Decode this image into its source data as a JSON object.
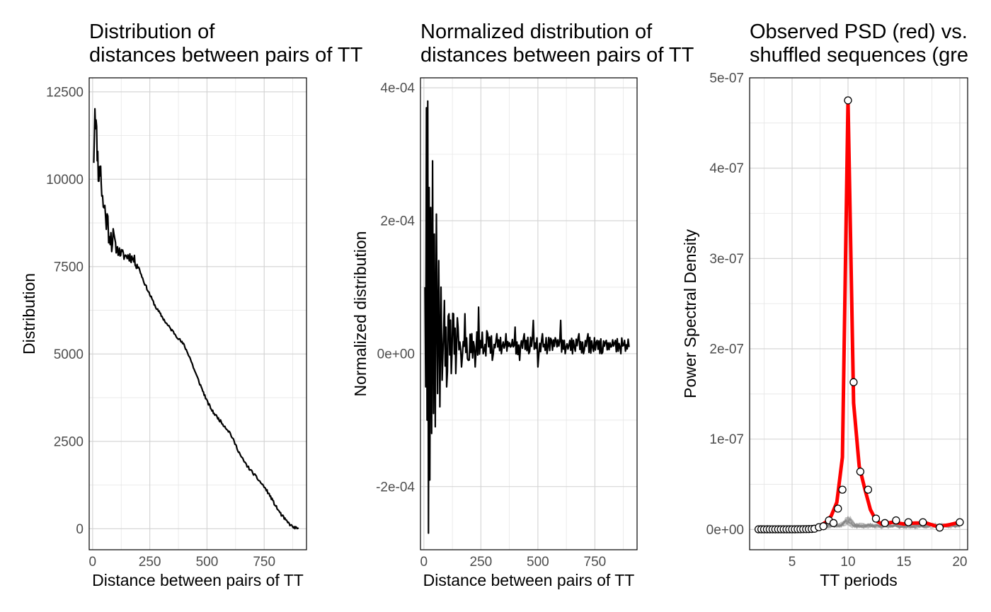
{
  "chart_data": [
    {
      "type": "line",
      "title_line1": "Distribution of",
      "title_line2": "distances between pairs of TT",
      "xlabel": "Distance between pairs of TT",
      "ylabel": "Distribution",
      "xlim": [
        -15,
        935
      ],
      "ylim": [
        -600,
        12900
      ],
      "x_ticks": [
        0,
        250,
        500,
        750
      ],
      "x_tick_labels": [
        "0",
        "250",
        "500",
        "750"
      ],
      "y_ticks": [
        0,
        2500,
        5000,
        7500,
        10000,
        12500
      ],
      "y_tick_labels": [
        "0",
        "2500",
        "5000",
        "7500",
        "10000",
        "12500"
      ],
      "grid": true,
      "line_color": "#000000",
      "series": [
        {
          "x": [
            5,
            10,
            15,
            20,
            25,
            30,
            35,
            40,
            50,
            60,
            70,
            80,
            90,
            100,
            120,
            140,
            160,
            180,
            200,
            225,
            250,
            275,
            300,
            325,
            350,
            375,
            400,
            425,
            450,
            475,
            500,
            525,
            550,
            575,
            600,
            625,
            650,
            675,
            700,
            725,
            750,
            775,
            800,
            825,
            850,
            875,
            900
          ],
          "values": [
            10700,
            12150,
            11500,
            10900,
            10300,
            10100,
            10500,
            9500,
            9200,
            8900,
            8600,
            8400,
            8200,
            8050,
            7900,
            7800,
            7800,
            7700,
            7500,
            7050,
            6700,
            6350,
            6100,
            5850,
            5650,
            5450,
            5250,
            4900,
            4450,
            4050,
            3650,
            3350,
            3150,
            2950,
            2750,
            2400,
            2050,
            1800,
            1600,
            1400,
            1200,
            950,
            650,
            400,
            200,
            50,
            0
          ]
        }
      ]
    },
    {
      "type": "line",
      "title_line1": "Normalized distribution of",
      "title_line2": "distances between pairs of TT",
      "xlabel": "Distance between pairs of TT",
      "ylabel": "Normalized distribution",
      "xlim": [
        -15,
        935
      ],
      "ylim": [
        -0.000295,
        0.000415
      ],
      "x_ticks": [
        0,
        250,
        500,
        750
      ],
      "x_tick_labels": [
        "0",
        "250",
        "500",
        "750"
      ],
      "y_ticks": [
        -0.0002,
        0,
        0.0002,
        0.0004
      ],
      "y_tick_labels": [
        "-2e-04",
        "0e+00",
        "2e-04",
        "4e-04"
      ],
      "grid": true,
      "line_color": "#000000",
      "series": [
        {
          "x": [
            5,
            8,
            11,
            14,
            17,
            20,
            23,
            26,
            30,
            34,
            38,
            42,
            46,
            50,
            55,
            60,
            65,
            70,
            75,
            80,
            90,
            100,
            110,
            120,
            130,
            140,
            150,
            165,
            180,
            195,
            210,
            225,
            240,
            260,
            280,
            300,
            320,
            340,
            360,
            380,
            400,
            420,
            440,
            460,
            480,
            500,
            520,
            540,
            560,
            580,
            600,
            620,
            640,
            660,
            680,
            700,
            720,
            740,
            760,
            780,
            800,
            820,
            840,
            860,
            880,
            900
          ],
          "values": [
            0.0001,
            -5e-05,
            0.00037,
            -0.0001,
            0.00038,
            -0.00027,
            0.00025,
            -0.00019,
            0.00022,
            -0.00012,
            0.00029,
            -9e-05,
            0.00018,
            -0.00011,
            0.00021,
            -6e-05,
            0.00014,
            -8e-05,
            0.0001,
            -4e-05,
            8e-05,
            -5e-05,
            6e-05,
            -3e-05,
            6e-05,
            -3e-05,
            4e-05,
            -2e-05,
            6e-05,
            -1e-05,
            3e-05,
            -2e-05,
            7e-05,
            0.0,
            3e-05,
            -1e-05,
            3e-05,
            0.0,
            3e-05,
            1e-05,
            4e-05,
            -1e-05,
            3e-05,
            0.0,
            5e-05,
            -2e-05,
            3e-05,
            0.0,
            2e-05,
            2e-05,
            5e-05,
            0.0,
            2e-05,
            1e-05,
            3e-05,
            0.0,
            3e-05,
            1e-05,
            2e-05,
            0.0,
            2e-05,
            1e-05,
            2e-05,
            1e-05,
            2e-05,
            1e-05
          ]
        }
      ]
    },
    {
      "type": "line",
      "title_line1": "Observed PSD (red) vs.",
      "title_line2": "shuffled sequences (gre",
      "xlabel": "TT periods",
      "ylabel": "Power Spectral Density",
      "xlim": [
        1.2,
        20.7
      ],
      "ylim": [
        -2.25e-08,
        5e-07
      ],
      "x_ticks": [
        5,
        10,
        15,
        20
      ],
      "x_tick_labels": [
        "5",
        "10",
        "15",
        "20"
      ],
      "y_ticks": [
        0,
        1e-07,
        2e-07,
        3e-07,
        4e-07,
        5e-07
      ],
      "y_tick_labels": [
        "0e+00",
        "1e-07",
        "2e-07",
        "3e-07",
        "4e-07",
        "5e-07"
      ],
      "grid": true,
      "observed_color": "#ff0000",
      "shuffled_color": "#808080",
      "series": [
        {
          "x": [
            2.0,
            2.5,
            3.0,
            3.5,
            4.0,
            4.5,
            5.0,
            5.5,
            6.0,
            6.5,
            7.0,
            7.5,
            8.0,
            8.5,
            9.0,
            9.5,
            10.0,
            10.5,
            11.0,
            11.5,
            12.0,
            12.5,
            13.0,
            14.0,
            15.0,
            16.0,
            17.0,
            18.0,
            19.0,
            20.0
          ],
          "values": [
            2e-10,
            2e-10,
            3e-10,
            3e-10,
            4e-10,
            4e-10,
            5e-10,
            7e-10,
            1e-09,
            1.5e-09,
            2.5e-09,
            4e-09,
            8e-09,
            1.5e-08,
            3e-08,
            8e-08,
            4.75e-07,
            1.4e-07,
            7e-08,
            4.5e-08,
            2.2e-08,
            1e-08,
            6e-09,
            8e-09,
            6e-09,
            7e-09,
            7e-09,
            3e-09,
            5e-09,
            8e-09
          ]
        }
      ],
      "points": {
        "x": [
          2.0,
          2.25,
          2.5,
          2.75,
          3.0,
          3.25,
          3.5,
          3.75,
          4.0,
          4.25,
          4.5,
          4.75,
          5.0,
          5.25,
          5.5,
          5.75,
          6.0,
          6.25,
          6.5,
          6.75,
          7.0,
          7.4,
          7.8,
          8.3,
          8.7,
          9.1,
          9.5,
          10.0,
          10.5,
          11.1,
          11.8,
          12.5,
          13.3,
          14.3,
          15.4,
          16.7,
          18.2,
          20.0
        ],
        "values": [
          1e-10,
          1e-10,
          1e-10,
          1e-10,
          1e-10,
          1e-10,
          1e-10,
          1e-10,
          1e-10,
          1e-10,
          1e-10,
          1e-10,
          1e-10,
          1e-10,
          2e-10,
          2e-10,
          3e-10,
          3e-10,
          4e-10,
          5e-10,
          8e-10,
          2.5e-09,
          3.5e-09,
          1e-08,
          7e-09,
          2.3e-08,
          4.4e-08,
          4.75e-07,
          1.63e-07,
          6.4e-08,
          4.4e-08,
          1.2e-08,
          7e-09,
          1e-08,
          8e-09,
          8e-09,
          2e-09,
          8e-09
        ]
      }
    }
  ]
}
